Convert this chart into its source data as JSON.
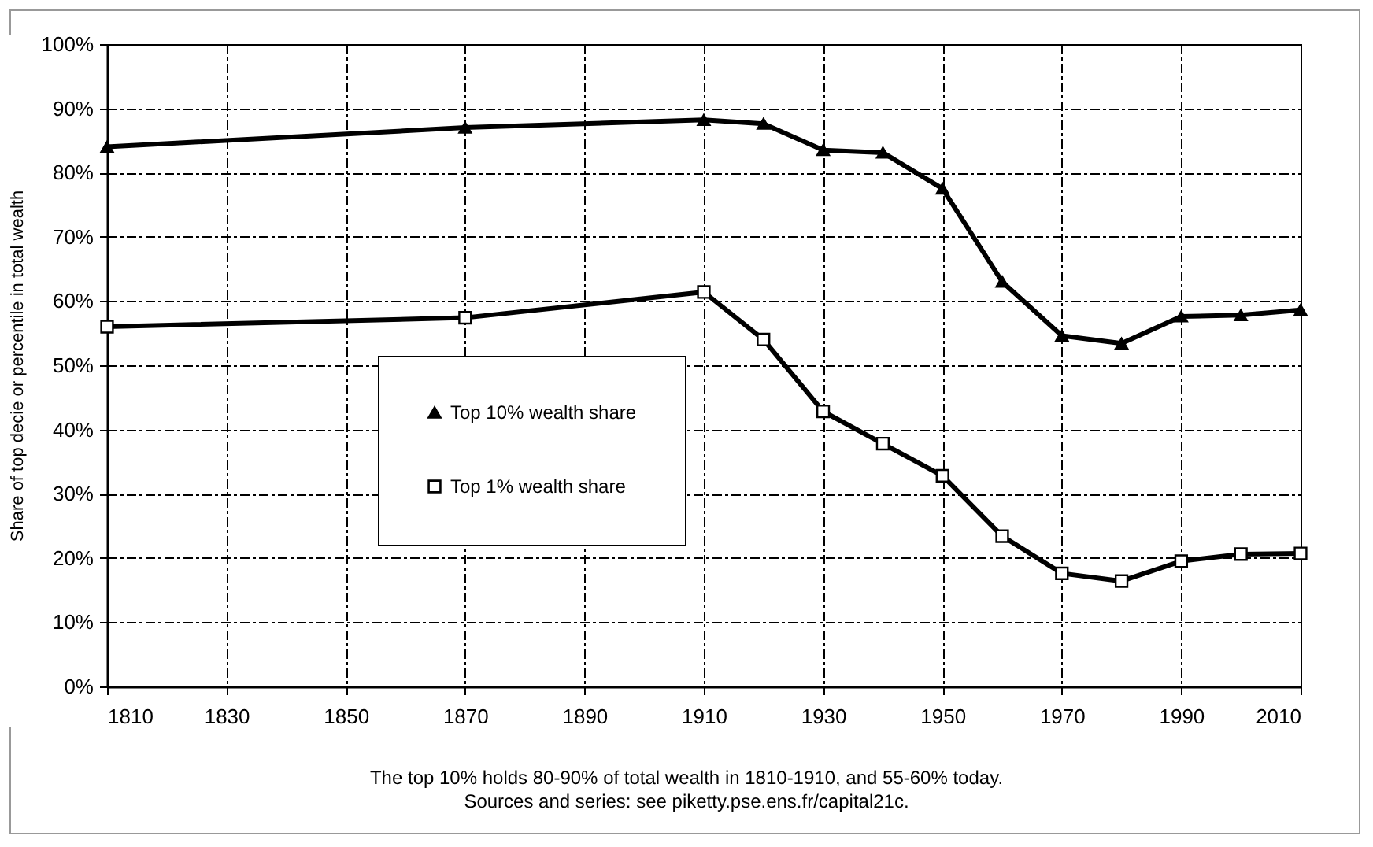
{
  "chart_data": {
    "type": "line",
    "xlabel": null,
    "ylabel": "Share of top decie or percentile in total wealth",
    "annotations": [
      "The top 10% holds 80-90% of total wealth in 1810-1910, and 55-60% today.",
      "Sources and series: see piketty.pse.ens.fr/capital21c."
    ],
    "x": [
      1810,
      1870,
      1910,
      1920,
      1930,
      1940,
      1950,
      1960,
      1970,
      1980,
      1990,
      2000,
      2010
    ],
    "series": [
      {
        "name": "Top 10% wealth share",
        "color": "#000000",
        "marker": "triangle",
        "values": [
          84,
          87,
          88.2,
          87.6,
          83.5,
          83.1,
          77.5,
          63,
          54.6,
          53.4,
          57.6,
          57.8,
          58.6
        ]
      },
      {
        "name": "Top 1% wealth share",
        "color": "#000000",
        "marker": "square",
        "values": [
          56,
          57.4,
          61.4,
          54,
          42.8,
          37.8,
          32.8,
          23.4,
          17.6,
          16.4,
          19.5,
          20.6,
          20.7
        ]
      }
    ],
    "xlim": [
      1810,
      2010
    ],
    "xticks": [
      1810,
      1830,
      1850,
      1870,
      1890,
      1910,
      1930,
      1950,
      1970,
      1990,
      2010
    ],
    "ylim": [
      0,
      100
    ],
    "yticks": [
      {
        "value": 0,
        "label": "0%"
      },
      {
        "value": 10,
        "label": "10%"
      },
      {
        "value": 20,
        "label": "20%"
      },
      {
        "value": 30,
        "label": "30%"
      },
      {
        "value": 40,
        "label": "40%"
      },
      {
        "value": 50,
        "label": "50%"
      },
      {
        "value": 60,
        "label": "60%"
      },
      {
        "value": 70,
        "label": "70%"
      },
      {
        "value": 80,
        "label": "80%"
      },
      {
        "value": 90,
        "label": "90%"
      },
      {
        "value": 100,
        "label": "100%"
      }
    ],
    "grid": true,
    "legend": "left",
    "line_style": "solid"
  }
}
